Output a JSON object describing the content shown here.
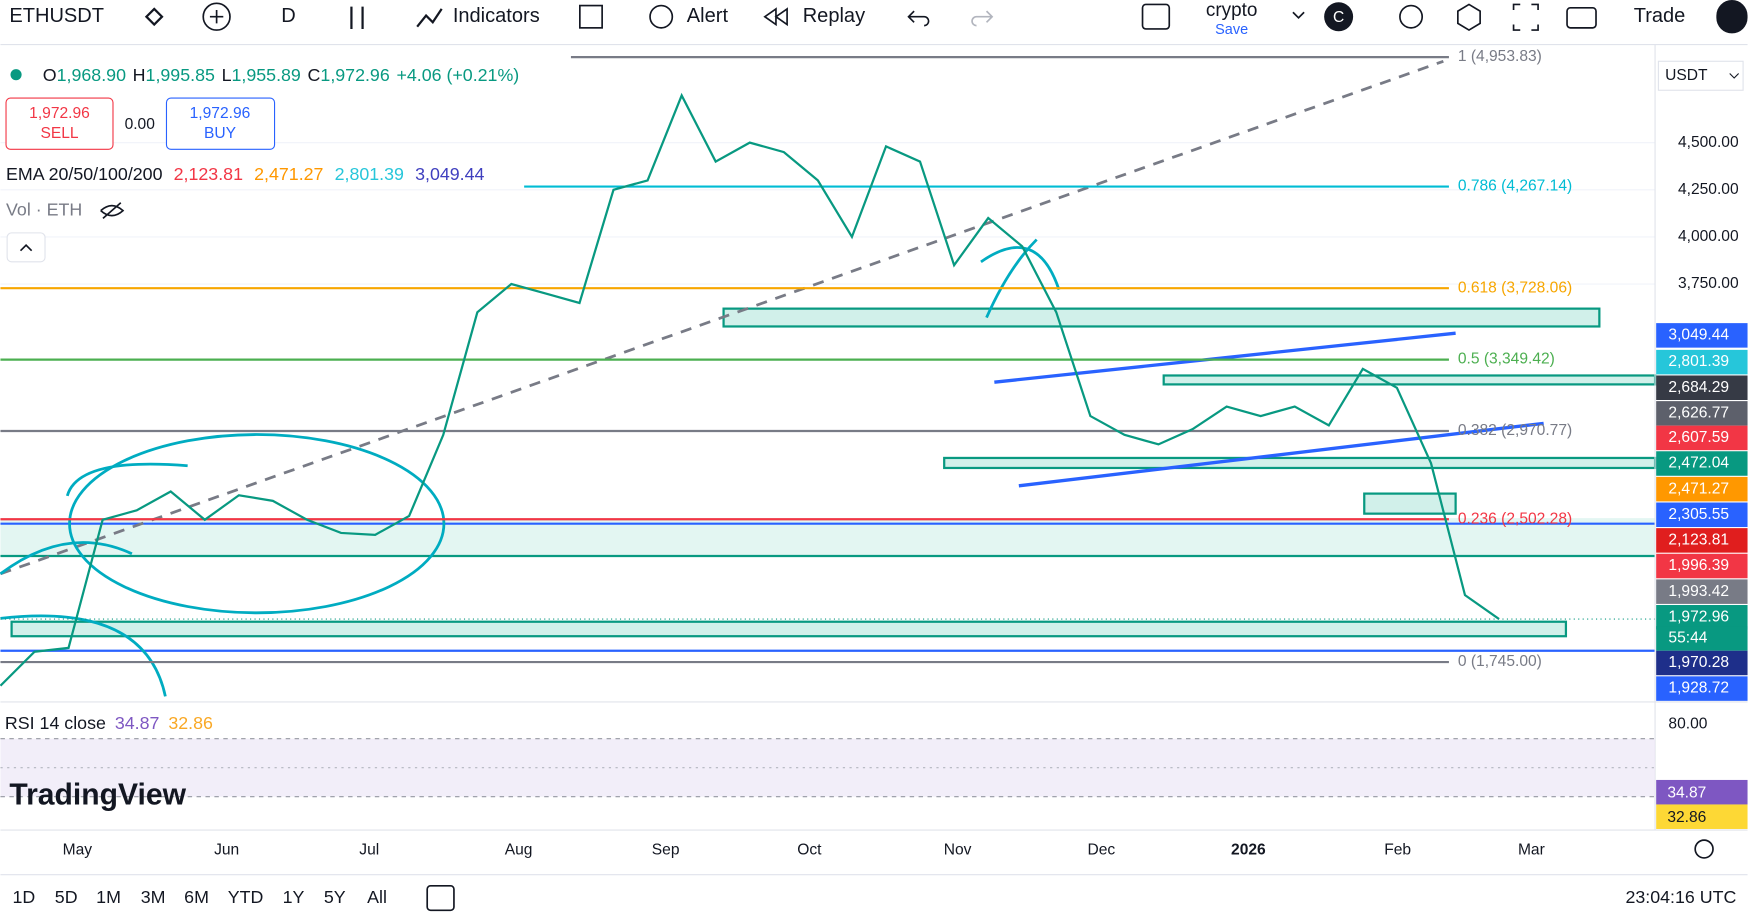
{
  "toolbar": {
    "symbol": "ETHUSDT",
    "interval": "D",
    "indicators": "Indicators",
    "alert": "Alert",
    "replay": "Replay",
    "layout_name": "crypto",
    "save": "Save",
    "avatar": "C",
    "trade": "Trade"
  },
  "legend": {
    "ohlc": [
      {
        "key": "O",
        "value": "1,968.90"
      },
      {
        "key": "H",
        "value": "1,995.85"
      },
      {
        "key": "L",
        "value": "1,955.89"
      },
      {
        "key": "C",
        "value": "1,972.96"
      }
    ],
    "change": "+4.06 (+0.21%)",
    "sell_price": "1,972.96",
    "sell": "SELL",
    "spread": "0.00",
    "buy_price": "1,972.96",
    "buy": "BUY",
    "ema_title": "EMA 20/50/100/200",
    "ema_values": [
      {
        "value": "2,123.81",
        "color": "#f23645"
      },
      {
        "value": "2,471.27",
        "color": "#ff9800"
      },
      {
        "value": "2,801.39",
        "color": "#26c6da"
      },
      {
        "value": "3,049.44",
        "color": "#3f3fbf"
      }
    ],
    "volume": "Vol · ETH"
  },
  "chart": {
    "currency": "USDT",
    "ylim": [
      1563,
      4973
    ],
    "yticks": [
      {
        "value": 3750,
        "label": "3,750.00"
      },
      {
        "value": 4000,
        "label": "4,000.00"
      },
      {
        "value": 4250,
        "label": "4,250.00"
      },
      {
        "value": 4500,
        "label": "4,500.00"
      }
    ],
    "line_color": "#089981",
    "closes": [
      1620,
      1800,
      1820,
      2500,
      2550,
      2650,
      2500,
      2630,
      2600,
      2500,
      2430,
      2420,
      2520,
      2950,
      3600,
      3750,
      3700,
      3650,
      4250,
      4300,
      4750,
      4400,
      4500,
      4450,
      4300,
      4000,
      4480,
      4400,
      3850,
      4100,
      3950,
      3600,
      3050,
      2950,
      2900,
      2980,
      3100,
      3050,
      3100,
      3000,
      3300,
      3200,
      2800,
      2100,
      1972.96
    ],
    "levels": [
      {
        "price": 4953.83,
        "label": "1 (4,953.83)",
        "color": "#787b86"
      },
      {
        "price": 4267.14,
        "label": "0.786 (4,267.14)",
        "color": "#00bcd4"
      },
      {
        "price": 3728.06,
        "label": "0.618 (3,728.06)",
        "color": "#f7a600"
      },
      {
        "price": 3349.42,
        "label": "0.5 (3,349.42)",
        "color": "#4caf50"
      },
      {
        "price": 2970.77,
        "label": "0.382 (2,970.77)",
        "color": "#787b86"
      },
      {
        "price": 2502.28,
        "label": "0.236 (2,502.28)",
        "color": "#f23645"
      },
      {
        "price": 1745,
        "label": "0 (1,745.00)",
        "color": "#787b86"
      }
    ]
  },
  "price_labels": [
    {
      "text": "3,049.44",
      "color": "#2962ff"
    },
    {
      "text": "2,801.39",
      "color": "#26c6da"
    },
    {
      "text": "2,684.29",
      "color": "#363a45"
    },
    {
      "text": "2,626.77",
      "color": "#5d606b"
    },
    {
      "text": "2,607.59",
      "color": "#f23645"
    },
    {
      "text": "2,472.04",
      "color": "#089981"
    },
    {
      "text": "2,471.27",
      "color": "#ff9800"
    },
    {
      "text": "2,305.55",
      "color": "#2962ff"
    },
    {
      "text": "2,123.81",
      "color": "#e01e1e"
    },
    {
      "text": "1,996.39",
      "color": "#f23645"
    },
    {
      "text": "1,993.42",
      "color": "#787b86"
    },
    {
      "text": "1,972.96",
      "color": "#089981"
    },
    {
      "text": "55:44",
      "color": "#089981"
    },
    {
      "text": "1,970.28",
      "color": "#1e2f8a"
    },
    {
      "text": "1,928.72",
      "color": "#2962ff"
    }
  ],
  "time_axis": [
    "May",
    "Jun",
    "Jul",
    "Aug",
    "Sep",
    "Oct",
    "Nov",
    "Dec",
    "2026",
    "Feb",
    "Mar"
  ],
  "rsi": {
    "title": "RSI 14 close",
    "value": "34.87",
    "ma": "32.86",
    "tick": "80.00",
    "label_value": "34.87",
    "label_ma": "32.86"
  },
  "brand": "TradingView",
  "footer": {
    "ranges": [
      "1D",
      "5D",
      "1M",
      "3M",
      "6M",
      "YTD",
      "1Y",
      "5Y",
      "All"
    ],
    "clock": "23:04:16 UTC"
  }
}
